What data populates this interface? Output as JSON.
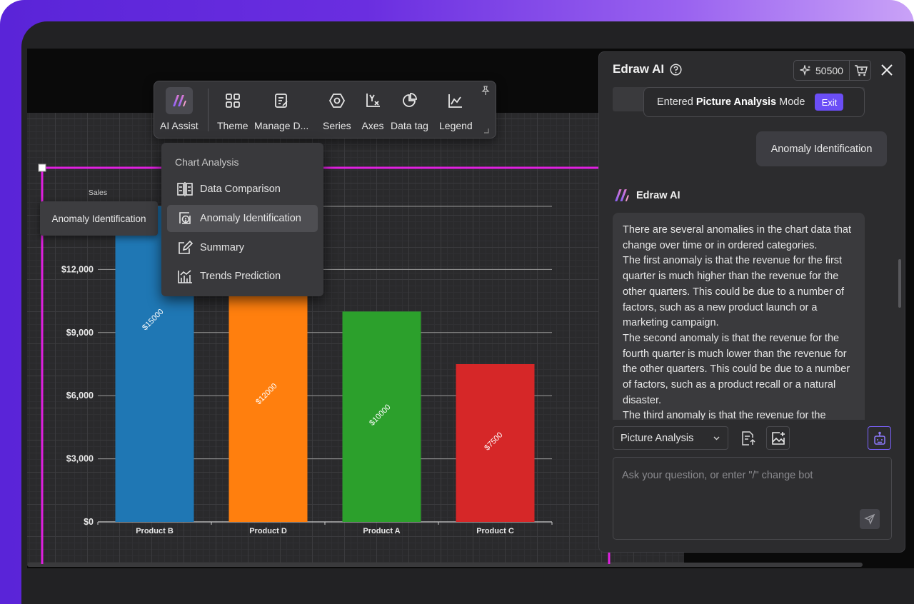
{
  "colors": {
    "accent": "#6b4ef6",
    "selection": "#e020e0",
    "bar_blue": "#1f77b4",
    "bar_orange": "#ff7f0e",
    "bar_green": "#2ca02c",
    "bar_red": "#d62728"
  },
  "toolbar": {
    "items": [
      {
        "label": "AI Assist",
        "icon": "ai-assist-icon"
      },
      {
        "label": "Theme",
        "icon": "theme-grid-icon"
      },
      {
        "label": "Manage D...",
        "icon": "manage-data-icon"
      },
      {
        "label": "Series",
        "icon": "series-hexagon-icon"
      },
      {
        "label": "Axes",
        "icon": "axes-icon"
      },
      {
        "label": "Data tag",
        "icon": "data-tag-icon"
      },
      {
        "label": "Legend",
        "icon": "legend-icon"
      }
    ]
  },
  "menu": {
    "title": "Chart Analysis",
    "items": [
      {
        "label": "Data Comparison",
        "icon": "data-comparison-icon"
      },
      {
        "label": "Anomaly Identification",
        "icon": "anomaly-icon",
        "active": true
      },
      {
        "label": "Summary",
        "icon": "summary-edit-icon"
      },
      {
        "label": "Trends Prediction",
        "icon": "trends-icon"
      }
    ]
  },
  "tooltip": "Anomaly Identification",
  "chart_data": {
    "type": "bar",
    "title": "",
    "ylabel": "Sales",
    "xlabel": "",
    "categories": [
      "Product B",
      "Product D",
      "Product A",
      "Product C"
    ],
    "values": [
      15000,
      12000,
      10000,
      7500
    ],
    "data_labels": [
      "$15000",
      "$12000",
      "$10000",
      "$7500"
    ],
    "bar_colors": [
      "#1f77b4",
      "#ff7f0e",
      "#2ca02c",
      "#d62728"
    ],
    "yticks": [
      "$0",
      "$3,000",
      "$6,000",
      "$9,000",
      "$12,000"
    ],
    "ylim": [
      0,
      15000
    ],
    "grid": true
  },
  "panel": {
    "title": "Edraw AI",
    "credits": "50500",
    "mode_prefix": "Entered ",
    "mode_name": "Picture Analysis",
    "mode_suffix": " Mode",
    "exit_label": "Exit",
    "user_message": "Anomaly Identification",
    "bot_name": "Edraw AI",
    "bot_paragraphs": [
      "There are several anomalies in the chart data that change over time or in ordered categories.",
      "The first anomaly is that the revenue for the first quarter is much higher than the revenue for the other quarters. This could be due to a number of factors, such as a new product launch or a marketing campaign.",
      "The second anomaly is that the revenue for the fourth quarter is much lower than the revenue for the other quarters. This could be due to a number of factors, such as a product recall or a natural disaster.",
      "The third anomaly is that the revenue for the"
    ],
    "mode_select": "Picture Analysis",
    "input_placeholder": "Ask your question, or enter \"/\" change bot"
  }
}
